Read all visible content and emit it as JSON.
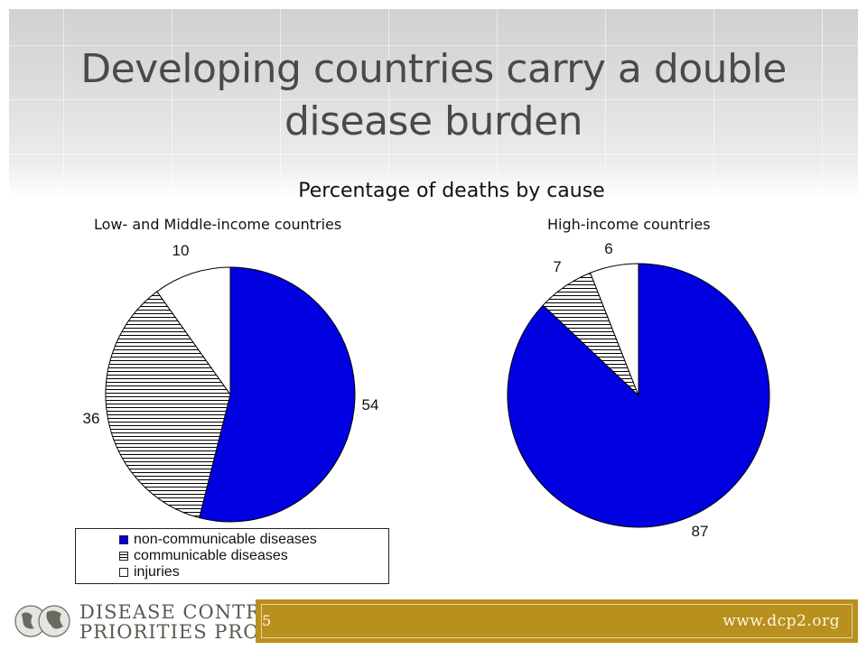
{
  "slide": {
    "title_line1": "Developing countries carry a double",
    "title_line2": "disease burden",
    "subtitle": "Percentage of deaths by cause",
    "page_number": "5",
    "url": "www.dcp2.org",
    "logo_line1": "DISEASE CONTROL",
    "logo_line2": "PRIORITIES PROJECT"
  },
  "legend": {
    "items": [
      {
        "label": "non-communicable diseases"
      },
      {
        "label": "communicable diseases"
      },
      {
        "label": "injuries"
      }
    ]
  },
  "colors": {
    "non_communicable": "#0000e0",
    "communicable_hatch": "#000000",
    "injuries": "#ffffff",
    "footer_bar": "#b8901e"
  },
  "chart_data": [
    {
      "type": "pie",
      "title": "Low- and Middle-income countries",
      "categories": [
        "non-communicable diseases",
        "communicable diseases",
        "injuries"
      ],
      "values": [
        54,
        36,
        10
      ],
      "data_labels": [
        "54",
        "36",
        "10"
      ]
    },
    {
      "type": "pie",
      "title": "High-income countries",
      "categories": [
        "non-communicable diseases",
        "communicable diseases",
        "injuries"
      ],
      "values": [
        87,
        7,
        6
      ],
      "data_labels": [
        "87",
        "7",
        "6"
      ]
    }
  ]
}
